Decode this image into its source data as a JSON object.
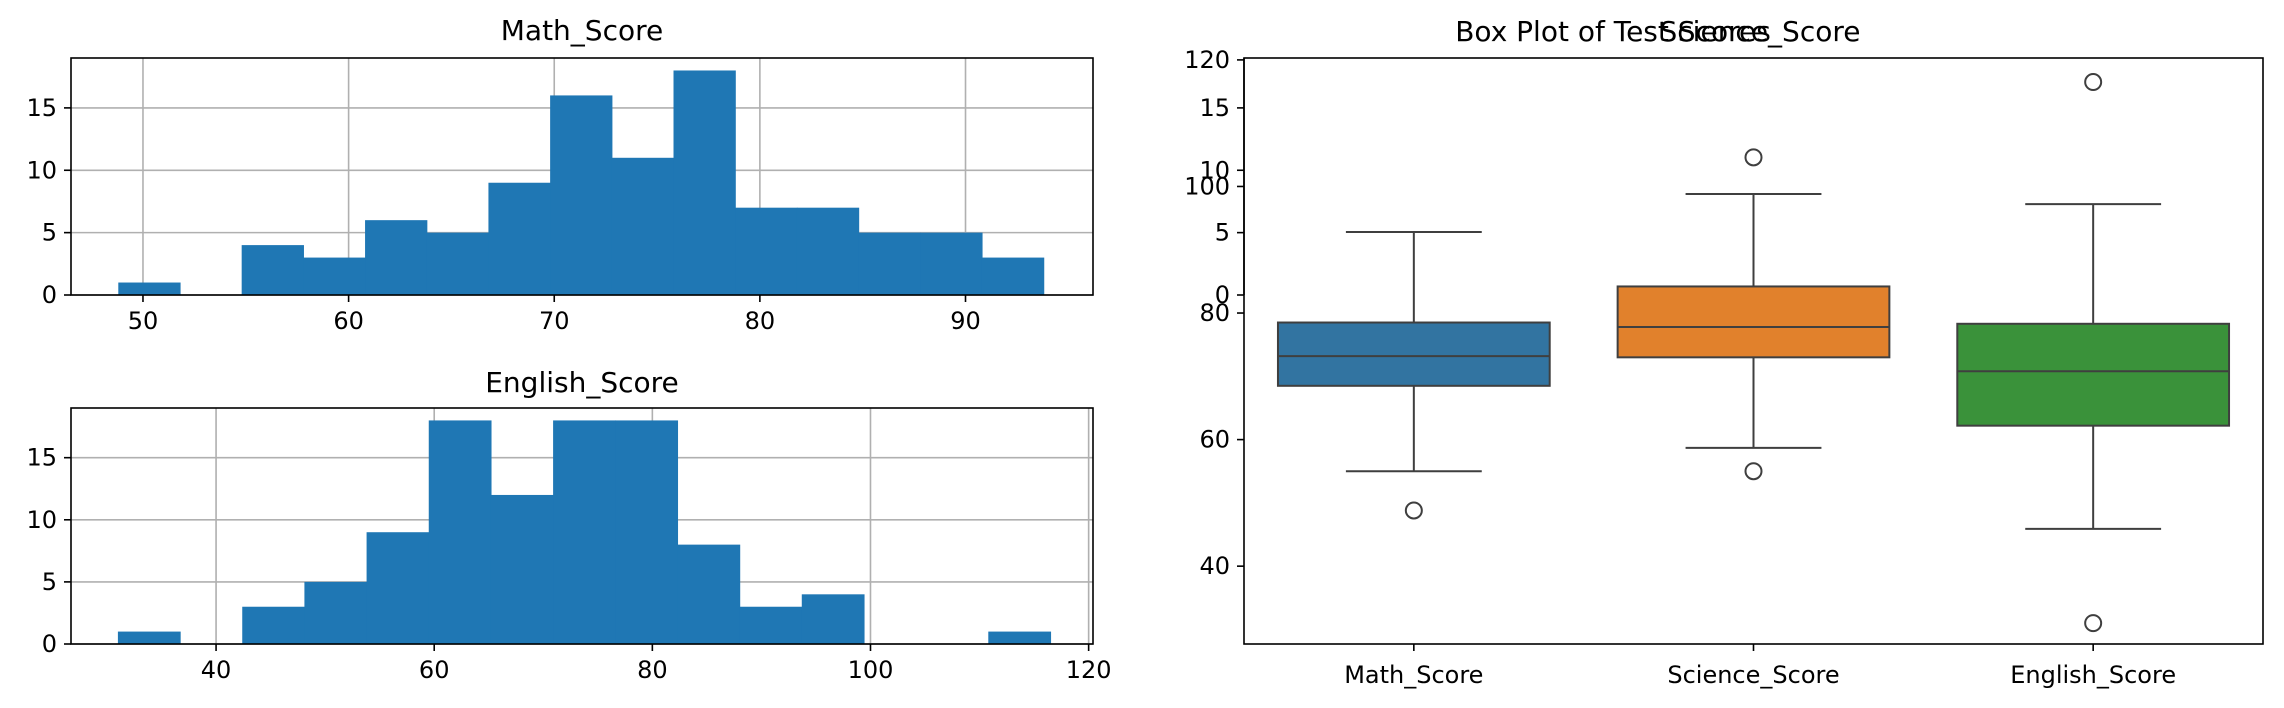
{
  "chart_data": [
    {
      "type": "bar",
      "subtype": "histogram",
      "title": "Math_Score",
      "bin_edges": [
        48.8,
        51.8,
        54.8,
        57.8,
        60.8,
        63.8,
        66.8,
        69.8,
        72.8,
        75.8,
        78.8,
        81.8,
        84.8,
        87.8,
        90.8,
        93.8
      ],
      "values": [
        1,
        0,
        4,
        3,
        6,
        5,
        9,
        16,
        11,
        18,
        7,
        7,
        5,
        5,
        3
      ],
      "xlim": [
        46.5,
        96.2
      ],
      "ylim": [
        0,
        19
      ],
      "xticks": [
        50,
        60,
        70,
        80,
        90
      ],
      "yticks": [
        0,
        5,
        10,
        15
      ],
      "grid": true,
      "color": "#1f77b4"
    },
    {
      "type": "bar",
      "subtype": "histogram",
      "title": "English_Score",
      "bin_edges": [
        31.0,
        36.7,
        42.4,
        48.1,
        53.8,
        59.5,
        65.2,
        70.9,
        76.6,
        82.3,
        88.0,
        93.7,
        99.4,
        105.1,
        110.8,
        116.5
      ],
      "values": [
        1,
        0,
        3,
        5,
        9,
        18,
        12,
        18,
        18,
        8,
        3,
        4,
        0,
        0,
        1
      ],
      "xlim": [
        26.7,
        120.4
      ],
      "ylim": [
        0,
        19
      ],
      "xticks": [
        40,
        60,
        80,
        100,
        120
      ],
      "yticks": [
        0,
        5,
        10,
        15
      ],
      "grid": true,
      "color": "#1f77b4"
    },
    {
      "type": "box",
      "title": "Box Plot of Test Scores",
      "categories": [
        "Math_Score",
        "Science_Score",
        "English_Score"
      ],
      "boxes": [
        {
          "category": "Math_Score",
          "whisker_low": 55.0,
          "q1": 68.5,
          "median": 73.2,
          "q3": 78.5,
          "whisker_high": 92.8,
          "outliers": [
            48.8
          ],
          "color": "#3274a1"
        },
        {
          "category": "Science_Score",
          "whisker_low": 58.7,
          "q1": 73.0,
          "median": 77.8,
          "q3": 84.2,
          "whisker_high": 98.8,
          "outliers": [
            55.0,
            104.6
          ],
          "color": "#e1812c"
        },
        {
          "category": "English_Score",
          "whisker_low": 45.9,
          "q1": 62.2,
          "median": 70.8,
          "q3": 78.3,
          "whisker_high": 97.2,
          "outliers": [
            31.0,
            116.5
          ],
          "color": "#3a923a"
        }
      ],
      "ylim": [
        27.7,
        120.3
      ],
      "yticks": [
        40,
        60,
        80,
        100,
        120
      ]
    },
    {
      "type": "bar",
      "title": "Science_Score",
      "note": "overlapping empty axes drawn on top of box plot",
      "values": [],
      "ylim": [
        0,
        19
      ],
      "yticks": [
        0,
        5,
        10,
        15
      ]
    }
  ]
}
